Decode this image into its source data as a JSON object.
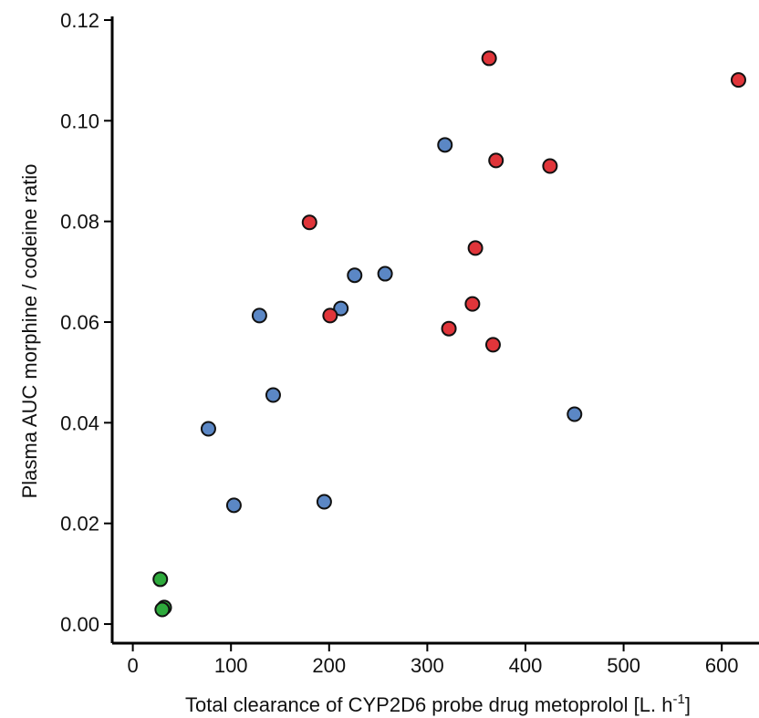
{
  "chart_data": {
    "type": "scatter",
    "x_label": "Total clearance of CYP2D6 probe drug metoprolol [L. h",
    "x_label_sup": "-1",
    "x_label_end": "]",
    "y_label": "Plasma AUC morphine / codeine ratio",
    "xlim": [
      -21,
      637
    ],
    "xticks": [
      0,
      100,
      200,
      300,
      400,
      500,
      600
    ],
    "ylim": [
      -0.0038,
      0.12
    ],
    "yticks": [
      {
        "value": 0,
        "label": "0.00"
      },
      0.02,
      0.04,
      0.06,
      0.08,
      {
        "value": 0.1,
        "label": "0.10"
      },
      0.12
    ],
    "series": [
      {
        "color": "#5b87c5",
        "x": [
          77,
          103,
          129,
          143,
          195,
          212,
          226,
          257,
          318,
          450
        ],
        "values": [
          0.0388,
          0.0236,
          0.0613,
          0.0455,
          0.0243,
          0.0627,
          0.0693,
          0.0696,
          0.0952,
          0.0417
        ]
      },
      {
        "color": "#e0353a",
        "x": [
          180,
          201,
          322,
          346,
          349,
          363,
          367,
          370,
          425,
          617
        ],
        "values": [
          0.0798,
          0.0613,
          0.0587,
          0.0636,
          0.0747,
          0.1124,
          0.0555,
          0.0921,
          0.091,
          0.1081
        ]
      },
      {
        "color": "#2eaa3c",
        "x": [
          28,
          32,
          30
        ],
        "values": [
          0.0089,
          0.0033,
          0.0029
        ]
      }
    ]
  }
}
